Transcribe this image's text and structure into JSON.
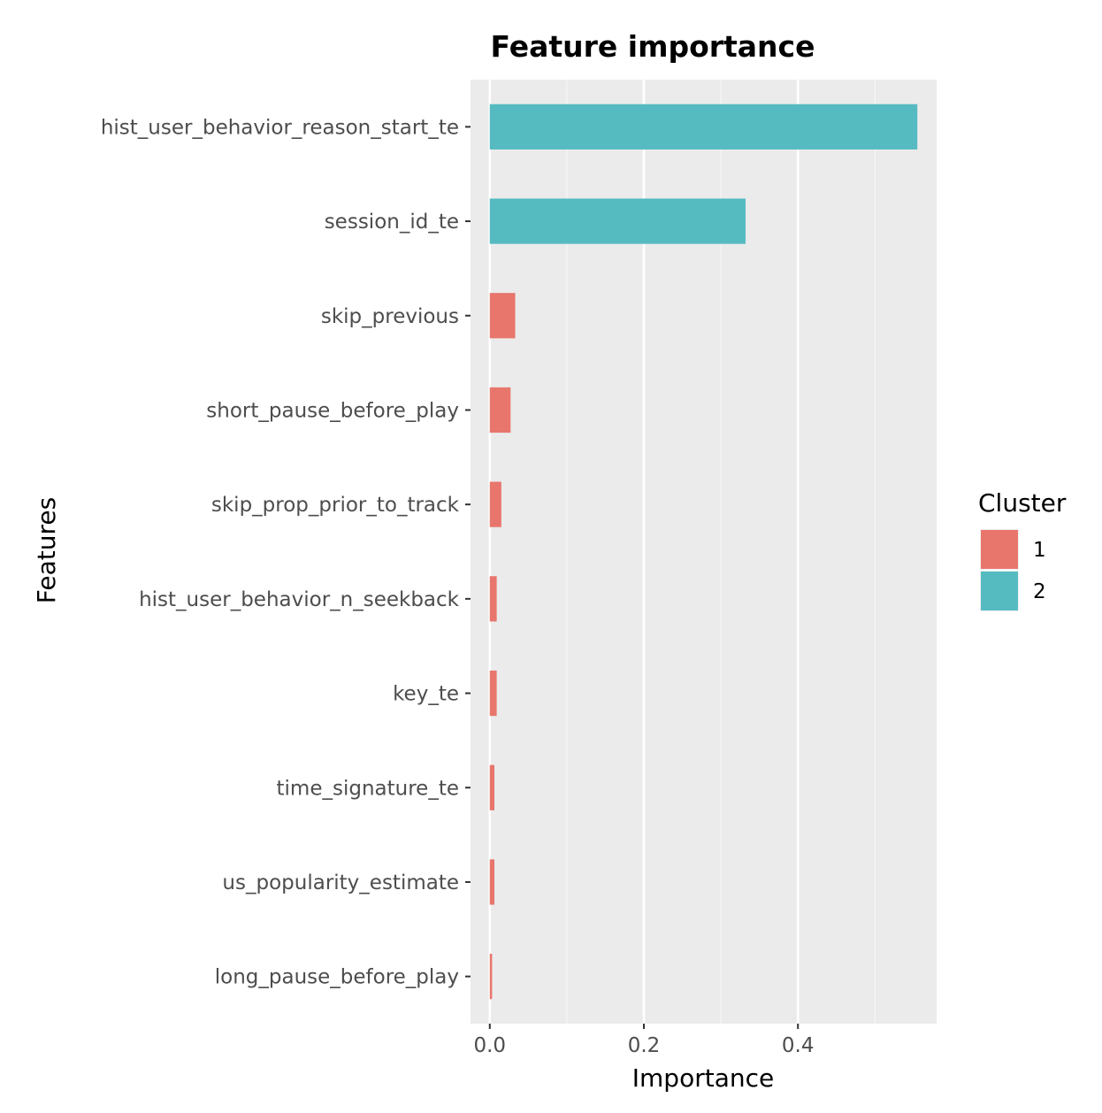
{
  "chart_data": {
    "type": "bar",
    "orientation": "horizontal",
    "title": "Feature importance",
    "xlabel": "Importance",
    "ylabel": "Features",
    "xlim": [
      -0.025,
      0.58
    ],
    "x_ticks": [
      0.0,
      0.2,
      0.4
    ],
    "x_tick_labels": [
      "0.0",
      "0.2",
      "0.4"
    ],
    "grid": true,
    "legend": {
      "title": "Cluster",
      "placement": "right",
      "entries": [
        {
          "label": "1",
          "color": "#E8766C"
        },
        {
          "label": "2",
          "color": "#55BBC1"
        }
      ]
    },
    "bars": [
      {
        "feature": "hist_user_behavior_reason_start_te",
        "value": 0.555,
        "cluster": "2"
      },
      {
        "feature": "session_id_te",
        "value": 0.332,
        "cluster": "2"
      },
      {
        "feature": "skip_previous",
        "value": 0.033,
        "cluster": "1"
      },
      {
        "feature": "short_pause_before_play",
        "value": 0.027,
        "cluster": "1"
      },
      {
        "feature": "skip_prop_prior_to_track",
        "value": 0.015,
        "cluster": "1"
      },
      {
        "feature": "hist_user_behavior_n_seekback",
        "value": 0.009,
        "cluster": "1"
      },
      {
        "feature": "key_te",
        "value": 0.009,
        "cluster": "1"
      },
      {
        "feature": "time_signature_te",
        "value": 0.006,
        "cluster": "1"
      },
      {
        "feature": "us_popularity_estimate",
        "value": 0.006,
        "cluster": "1"
      },
      {
        "feature": "long_pause_before_play",
        "value": 0.003,
        "cluster": "1"
      }
    ]
  }
}
